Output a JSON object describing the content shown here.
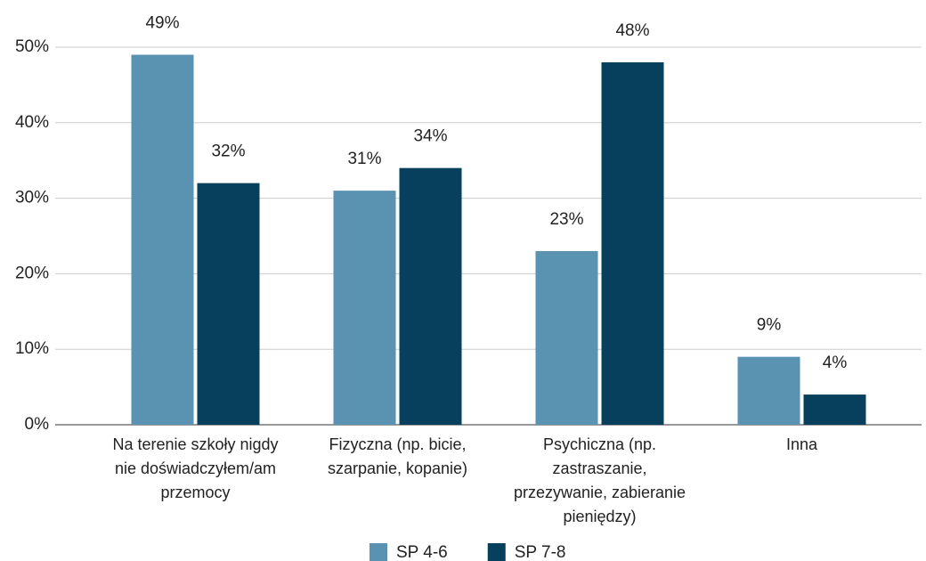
{
  "chart_data": {
    "type": "bar",
    "categories": [
      "Na terenie szkoły nigdy nie doświadczyłem/am przemocy",
      "Fizyczna (np. bicie, szarpanie, kopanie)",
      "Psychiczna (np. zastraszanie, przezywanie, zabieranie pieniędzy)",
      "Inna"
    ],
    "series": [
      {
        "name": "SP 4-6",
        "color": "#5a92b2",
        "values": [
          49,
          31,
          23,
          9
        ],
        "value_labels": [
          "49%",
          "31%",
          "23%",
          "9%"
        ]
      },
      {
        "name": "SP 7-8",
        "color": "#06405d",
        "values": [
          32,
          34,
          48,
          4
        ],
        "value_labels": [
          "32%",
          "34%",
          "48%",
          "4%"
        ]
      }
    ],
    "ylim": [
      0,
      50
    ],
    "yticks": [
      {
        "value": 0,
        "label": "0%"
      },
      {
        "value": 10,
        "label": "10%"
      },
      {
        "value": 20,
        "label": "20%"
      },
      {
        "value": 30,
        "label": "30%"
      },
      {
        "value": 40,
        "label": "40%"
      },
      {
        "value": 50,
        "label": "50%"
      }
    ],
    "grid": true,
    "legend": "bottom"
  }
}
